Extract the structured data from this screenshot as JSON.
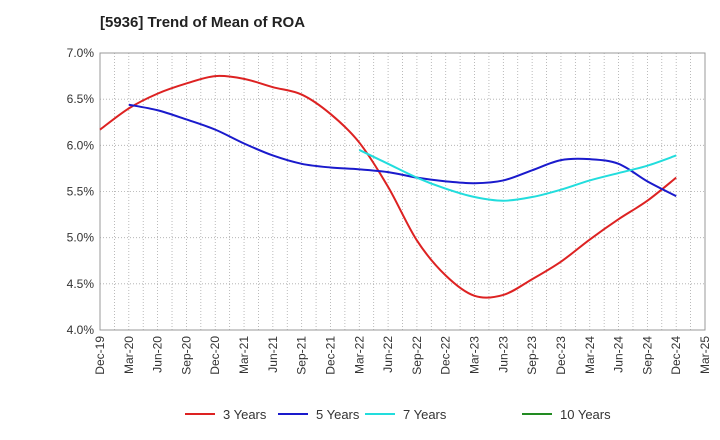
{
  "chart_data": {
    "type": "line",
    "title": "[5936]  Trend of Mean of ROA",
    "xlabel": "",
    "ylabel": "",
    "ylim": [
      4.0,
      7.0
    ],
    "y_ticks": [
      "4.0%",
      "4.5%",
      "5.0%",
      "5.5%",
      "6.0%",
      "6.5%",
      "7.0%"
    ],
    "y_tick_values": [
      4.0,
      4.5,
      5.0,
      5.5,
      6.0,
      6.5,
      7.0
    ],
    "x_ticks": [
      "Dec-19",
      "Mar-20",
      "Jun-20",
      "Sep-20",
      "Dec-20",
      "Mar-21",
      "Jun-21",
      "Sep-21",
      "Dec-21",
      "Mar-22",
      "Jun-22",
      "Sep-22",
      "Dec-22",
      "Mar-23",
      "Jun-23",
      "Sep-23",
      "Dec-23",
      "Mar-24",
      "Jun-24",
      "Sep-24",
      "Dec-24",
      "Mar-25"
    ],
    "grid": true,
    "legend_position": "bottom",
    "series": [
      {
        "name": "3 Years",
        "color": "#dd2222",
        "x": [
          "Dec-19",
          "Mar-20",
          "Jun-20",
          "Sep-20",
          "Dec-20",
          "Mar-21",
          "Jun-21",
          "Sep-21",
          "Dec-21",
          "Mar-22",
          "Jun-22",
          "Sep-22",
          "Dec-22",
          "Mar-23",
          "Jun-23",
          "Sep-23",
          "Dec-23",
          "Mar-24",
          "Jun-24",
          "Sep-24",
          "Dec-24"
        ],
        "values": [
          6.17,
          6.4,
          6.56,
          6.67,
          6.75,
          6.72,
          6.63,
          6.55,
          6.34,
          6.03,
          5.55,
          4.97,
          4.59,
          4.37,
          4.38,
          4.55,
          4.74,
          4.98,
          5.2,
          5.4,
          5.65
        ]
      },
      {
        "name": "5 Years",
        "color": "#1a1acc",
        "x": [
          "Mar-20",
          "Jun-20",
          "Sep-20",
          "Dec-20",
          "Mar-21",
          "Jun-21",
          "Sep-21",
          "Dec-21",
          "Mar-22",
          "Jun-22",
          "Sep-22",
          "Dec-22",
          "Mar-23",
          "Jun-23",
          "Sep-23",
          "Dec-23",
          "Mar-24",
          "Jun-24",
          "Sep-24",
          "Dec-24"
        ],
        "values": [
          6.44,
          6.38,
          6.28,
          6.17,
          6.02,
          5.89,
          5.8,
          5.76,
          5.74,
          5.71,
          5.65,
          5.61,
          5.59,
          5.62,
          5.73,
          5.84,
          5.85,
          5.8,
          5.61,
          5.45
        ]
      },
      {
        "name": "7 Years",
        "color": "#22dddd",
        "x": [
          "Mar-22",
          "Jun-22",
          "Sep-22",
          "Dec-22",
          "Mar-23",
          "Jun-23",
          "Sep-23",
          "Dec-23",
          "Mar-24",
          "Jun-24",
          "Sep-24",
          "Dec-24"
        ],
        "values": [
          5.95,
          5.8,
          5.65,
          5.53,
          5.44,
          5.4,
          5.44,
          5.52,
          5.62,
          5.7,
          5.78,
          5.89
        ]
      },
      {
        "name": "10 Years",
        "color": "#228b22",
        "x": [],
        "values": []
      }
    ]
  }
}
